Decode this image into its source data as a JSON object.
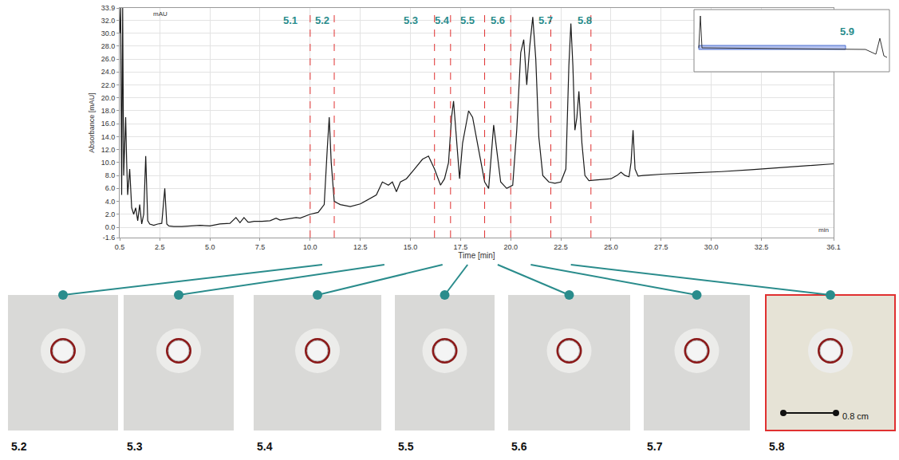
{
  "chart_data": {
    "type": "line",
    "xlabel": "Time [min]",
    "ylabel": "Absorbance [mAU]",
    "color": "#1a1a1a",
    "grid": true,
    "xlim": [
      0.5,
      36.1
    ],
    "xticks": [
      0.5,
      2.5,
      {
        "value": 5,
        "label": "5.0"
      },
      7.5,
      {
        "value": 10,
        "label": "10.0"
      },
      12.5,
      {
        "value": 15,
        "label": "15.0"
      },
      17.5,
      {
        "value": 20,
        "label": "20.0"
      },
      22.5,
      {
        "value": 25,
        "label": "25.0"
      },
      27.5,
      {
        "value": 30,
        "label": "30.0"
      },
      32.5,
      36.1
    ],
    "ylim": [
      -1.6,
      33.9
    ],
    "yticks": [
      -1.6,
      {
        "value": 0,
        "label": "0.0"
      },
      {
        "value": 2,
        "label": "2.0"
      },
      {
        "value": 4,
        "label": "4.0"
      },
      {
        "value": 6,
        "label": "6.0"
      },
      {
        "value": 8,
        "label": "8.0"
      },
      {
        "value": 10,
        "label": "10.0"
      },
      {
        "value": 12,
        "label": "12.0"
      },
      {
        "value": 14,
        "label": "14.0"
      },
      {
        "value": 16,
        "label": "16.0"
      },
      {
        "value": 18,
        "label": "18.0"
      },
      {
        "value": 20,
        "label": "20.0"
      },
      {
        "value": 22,
        "label": "22.0"
      },
      {
        "value": 24,
        "label": "24.0"
      },
      {
        "value": 26,
        "label": "26.0"
      },
      {
        "value": 28,
        "label": "28.0"
      },
      {
        "value": 30,
        "label": "30.0"
      },
      {
        "value": 32,
        "label": "32.0"
      },
      33.9
    ],
    "x": [
      0.5,
      0.55,
      0.6,
      0.65,
      0.7,
      0.75,
      0.8,
      0.85,
      0.9,
      1.0,
      1.1,
      1.2,
      1.3,
      1.4,
      1.5,
      1.6,
      1.7,
      1.8,
      1.85,
      1.9,
      2.0,
      2.2,
      2.4,
      2.6,
      2.75,
      2.85,
      2.95,
      3.2,
      3.6,
      4.0,
      4.5,
      5.0,
      5.5,
      6.0,
      6.3,
      6.5,
      6.7,
      6.9,
      7.0,
      7.2,
      7.6,
      8.0,
      8.3,
      8.5,
      9.0,
      9.3,
      9.5,
      10.0,
      10.4,
      10.7,
      10.85,
      10.95,
      11.05,
      11.2,
      11.5,
      12.0,
      12.5,
      13.0,
      13.3,
      13.6,
      13.9,
      14.1,
      14.3,
      14.5,
      14.8,
      15.2,
      15.6,
      15.9,
      16.2,
      16.5,
      16.7,
      16.9,
      17.05,
      17.15,
      17.3,
      17.45,
      17.6,
      17.9,
      18.1,
      18.4,
      18.7,
      18.9,
      19.05,
      19.15,
      19.3,
      19.5,
      19.8,
      20.1,
      20.3,
      20.5,
      20.65,
      20.8,
      20.95,
      21.1,
      21.25,
      21.4,
      21.6,
      21.9,
      22.2,
      22.5,
      22.75,
      22.9,
      23.0,
      23.1,
      23.2,
      23.3,
      23.4,
      23.55,
      23.7,
      23.9,
      24.2,
      24.6,
      25.0,
      25.3,
      25.5,
      25.7,
      25.9,
      26.0,
      26.1,
      26.2,
      26.35,
      26.6,
      27.5,
      29.0,
      30.5,
      32.0,
      33.5,
      35.0,
      36.1
    ],
    "values": [
      30,
      33.9,
      5,
      33.9,
      8,
      12,
      17,
      10,
      5,
      9,
      3,
      2,
      3,
      1,
      3.5,
      0.5,
      2,
      11,
      4,
      1,
      0.5,
      0.3,
      0.5,
      0.6,
      6,
      0.5,
      0.2,
      0.1,
      0.1,
      0.2,
      0.3,
      0.2,
      0.5,
      0.6,
      1.5,
      0.7,
      1.5,
      0.8,
      0.8,
      0.9,
      0.9,
      1.0,
      1.4,
      1.1,
      1.3,
      1.5,
      1.4,
      2.0,
      2.3,
      3.5,
      12,
      17,
      10,
      4.0,
      3.5,
      3.2,
      3.6,
      4.5,
      5,
      7,
      6.5,
      7,
      5.5,
      7,
      7.5,
      9,
      10.5,
      11,
      9,
      6.5,
      7.5,
      10,
      17,
      19.5,
      14,
      7.5,
      13,
      18,
      17,
      12,
      7,
      6,
      12,
      15.8,
      12,
      7,
      6,
      6.5,
      15,
      27,
      29,
      22,
      28,
      32.5,
      26,
      14,
      8,
      7,
      6.8,
      7,
      9,
      25,
      31.5,
      25,
      15,
      17,
      21,
      13,
      8,
      7.2,
      7.3,
      7.4,
      7.5,
      8,
      8.5,
      8,
      7.8,
      10,
      15,
      9,
      7.9,
      8.0,
      8.2,
      8.4,
      8.6,
      8.9,
      9.2,
      9.5,
      9.8
    ],
    "annotations": [
      {
        "text": "mAU"
      },
      {
        "text": "min"
      }
    ],
    "fraction_lines": [
      10.0,
      11.2,
      16.2,
      17.0,
      18.7,
      20.0,
      22.0,
      24.0
    ],
    "fractions": [
      {
        "label": "5.1",
        "x": 9.0
      },
      {
        "label": "5.2",
        "x": 10.6
      },
      {
        "label": "5.3",
        "x": 15.0
      },
      {
        "label": "5.4",
        "x": 16.6
      },
      {
        "label": "5.5",
        "x": 17.85
      },
      {
        "label": "5.6",
        "x": 19.35
      },
      {
        "label": "5.7",
        "x": 21.75
      },
      {
        "label": "5.8",
        "x": 23.7
      }
    ],
    "inset": {
      "label": "5.9"
    }
  },
  "plates": [
    {
      "label": "5.2",
      "time": 10.6
    },
    {
      "label": "5.3",
      "time": 13.7
    },
    {
      "label": "5.4",
      "time": 16.6
    },
    {
      "label": "5.5",
      "time": 17.85
    },
    {
      "label": "5.6",
      "time": 19.35
    },
    {
      "label": "5.7",
      "time": 21.0
    },
    {
      "label": "5.8",
      "time": 23.0,
      "scale_bar": "0.8 cm"
    }
  ]
}
